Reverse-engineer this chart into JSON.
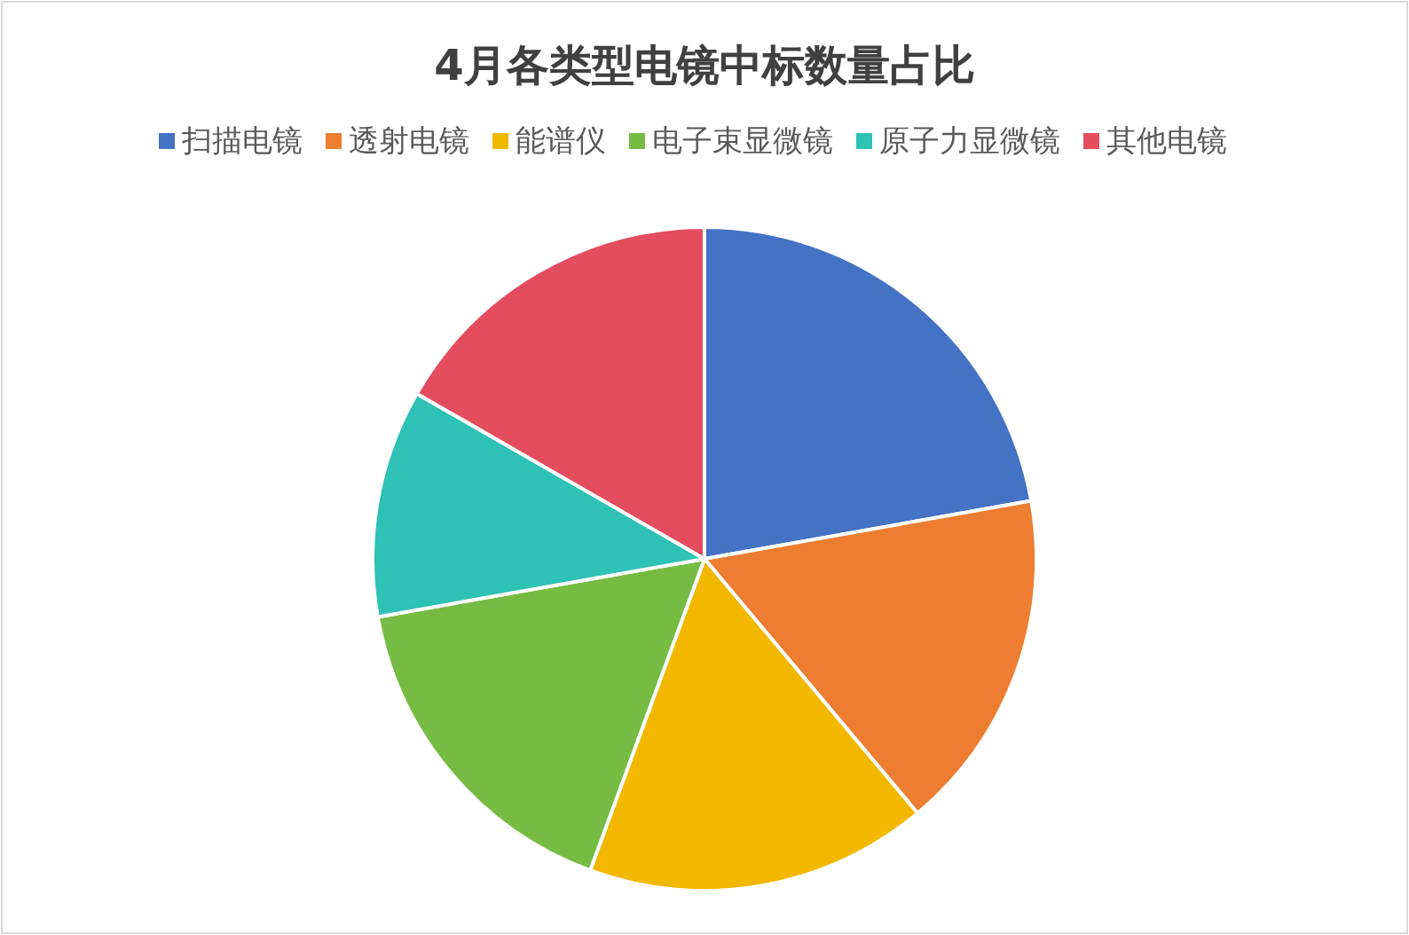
{
  "chart_data": {
    "type": "pie",
    "title": "4月各类型电镜中标数量占比",
    "categories": [
      "扫描电镜",
      "透射电镜",
      "能谱仪",
      "电子束显微镜",
      "原子力显微镜",
      "其他电镜"
    ],
    "values": [
      22.2,
      16.7,
      16.7,
      16.6,
      11.1,
      16.7
    ],
    "colors": [
      "#4472c4",
      "#ed7d31",
      "#f2b800",
      "#76bc43",
      "#2ec1b5",
      "#e44d5e"
    ],
    "legend": "top"
  }
}
